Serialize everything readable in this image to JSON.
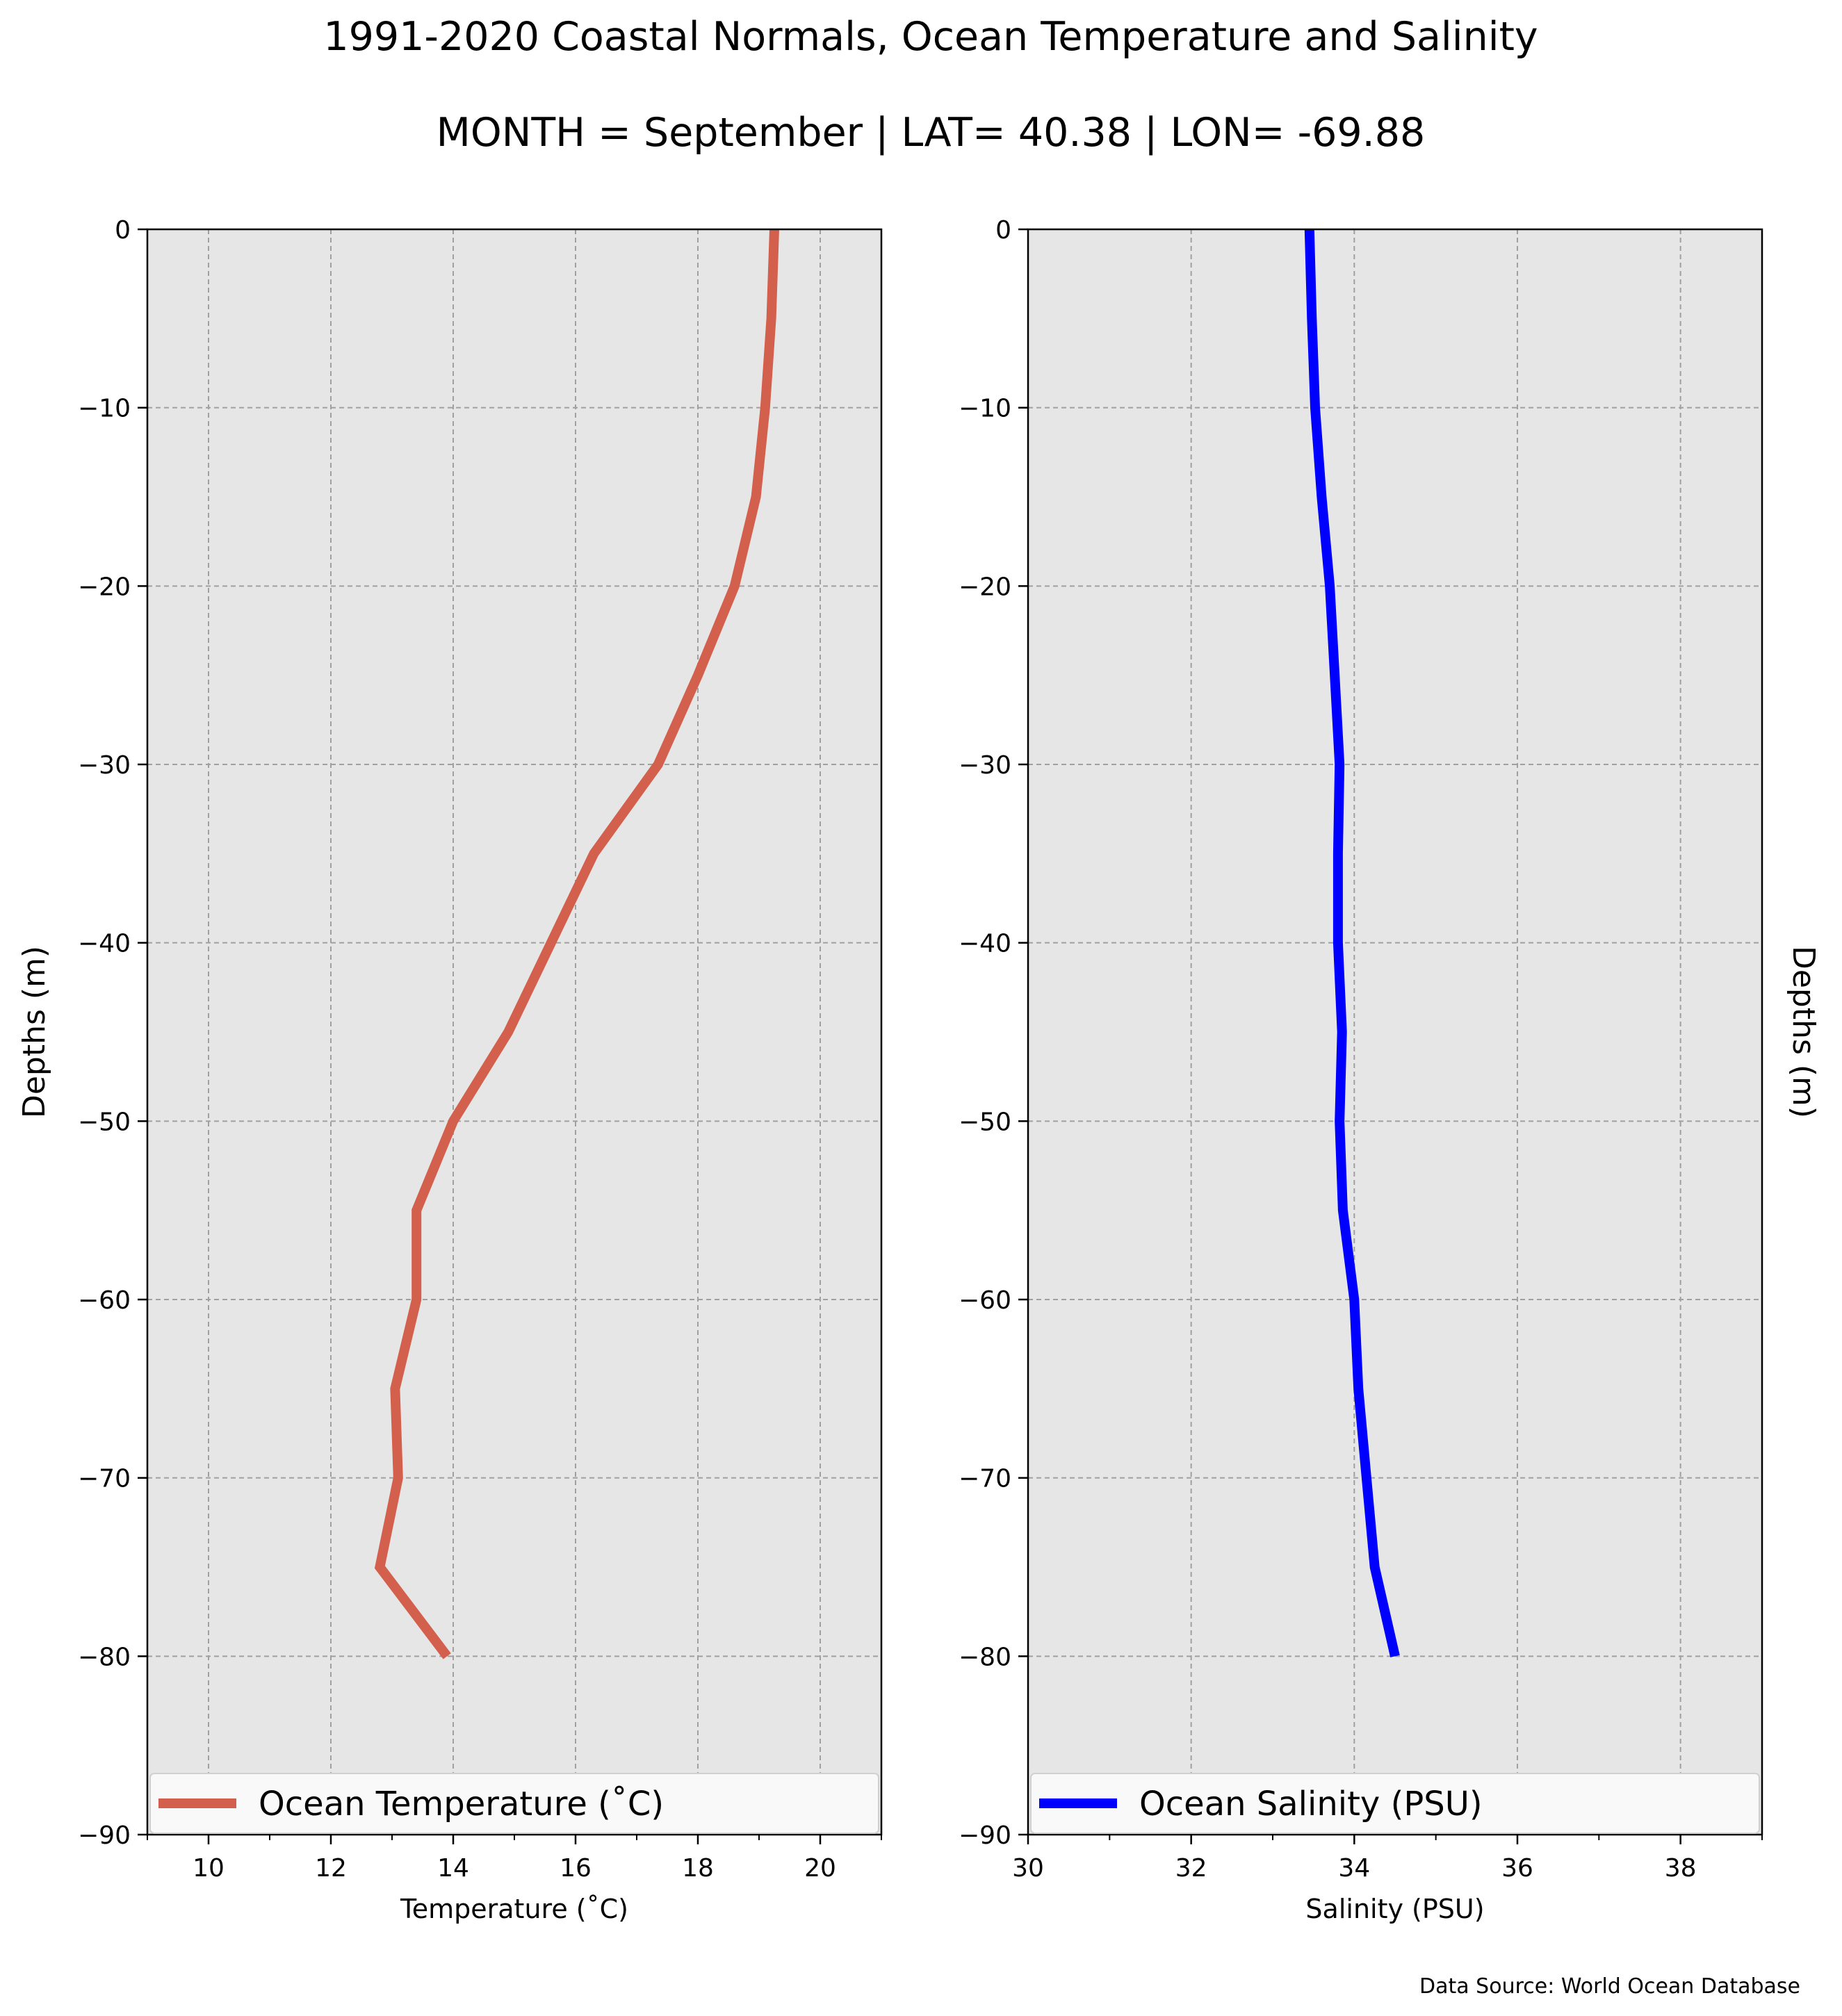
{
  "figure": {
    "title": "1991-2020 Coastal Normals, Ocean Temperature and Salinity",
    "subtitle": "MONTH = September | LAT= 40.38 | LON= -69.88",
    "source_note": "Data Source: World Ocean Database",
    "ylabel_left": "Depths (m)",
    "ylabel_right": "Depths (m)"
  },
  "chart_data": [
    {
      "type": "line",
      "xlabel": "Temperature ($^\\circ$C)",
      "xlabel_display": "Temperature (˚C)",
      "ylabel": "Depths (m)",
      "xlim": [
        9,
        21
      ],
      "ylim": [
        -90,
        0
      ],
      "xticks": [
        "10",
        "12",
        "14",
        "16",
        "18",
        "20"
      ],
      "xtick_values": [
        10,
        12,
        14,
        16,
        18,
        20
      ],
      "yticks": [
        "0",
        "−10",
        "−20",
        "−30",
        "−40",
        "−50",
        "−60",
        "−70",
        "−80",
        "−90"
      ],
      "ytick_values": [
        0,
        -10,
        -20,
        -30,
        -40,
        -50,
        -60,
        -70,
        -80,
        -90
      ],
      "grid": true,
      "legend_position": "bottom",
      "series": [
        {
          "name": "Ocean Temperature ($^\\circ$C)",
          "name_display": "Ocean Temperature (˚C)",
          "color": "#d35f4d",
          "x": [
            19.25,
            19.2,
            19.1,
            18.95,
            18.6,
            18.0,
            17.35,
            16.3,
            15.6,
            14.9,
            14.0,
            13.4,
            13.4,
            13.05,
            13.1,
            12.8,
            13.9
          ],
          "y": [
            0,
            -5,
            -10,
            -15,
            -20,
            -25,
            -30,
            -35,
            -40,
            -45,
            -50,
            -55,
            -60,
            -65,
            -70,
            -75,
            -80
          ]
        }
      ]
    },
    {
      "type": "line",
      "xlabel": "Salinity (PSU)",
      "ylabel": "Depths (m)",
      "xlim": [
        30,
        39
      ],
      "ylim": [
        -90,
        0
      ],
      "xticks": [
        "30",
        "32",
        "34",
        "36",
        "38"
      ],
      "xtick_values": [
        30,
        32,
        34,
        36,
        38
      ],
      "yticks": [
        "0",
        "−10",
        "−20",
        "−30",
        "−40",
        "−50",
        "−60",
        "−70",
        "−80",
        "−90"
      ],
      "ytick_values": [
        0,
        -10,
        -20,
        -30,
        -40,
        -50,
        -60,
        -70,
        -80,
        -90
      ],
      "grid": true,
      "legend_position": "bottom",
      "series": [
        {
          "name": "Ocean Salinity (PSU)",
          "color": "#0000ff",
          "x": [
            33.45,
            33.48,
            33.52,
            33.6,
            33.7,
            33.76,
            33.82,
            33.8,
            33.8,
            33.85,
            33.82,
            33.86,
            34.0,
            34.05,
            34.15,
            34.25,
            34.5
          ],
          "y": [
            0,
            -5,
            -10,
            -15,
            -20,
            -25,
            -30,
            -35,
            -40,
            -45,
            -50,
            -55,
            -60,
            -65,
            -70,
            -75,
            -80
          ]
        }
      ]
    }
  ]
}
